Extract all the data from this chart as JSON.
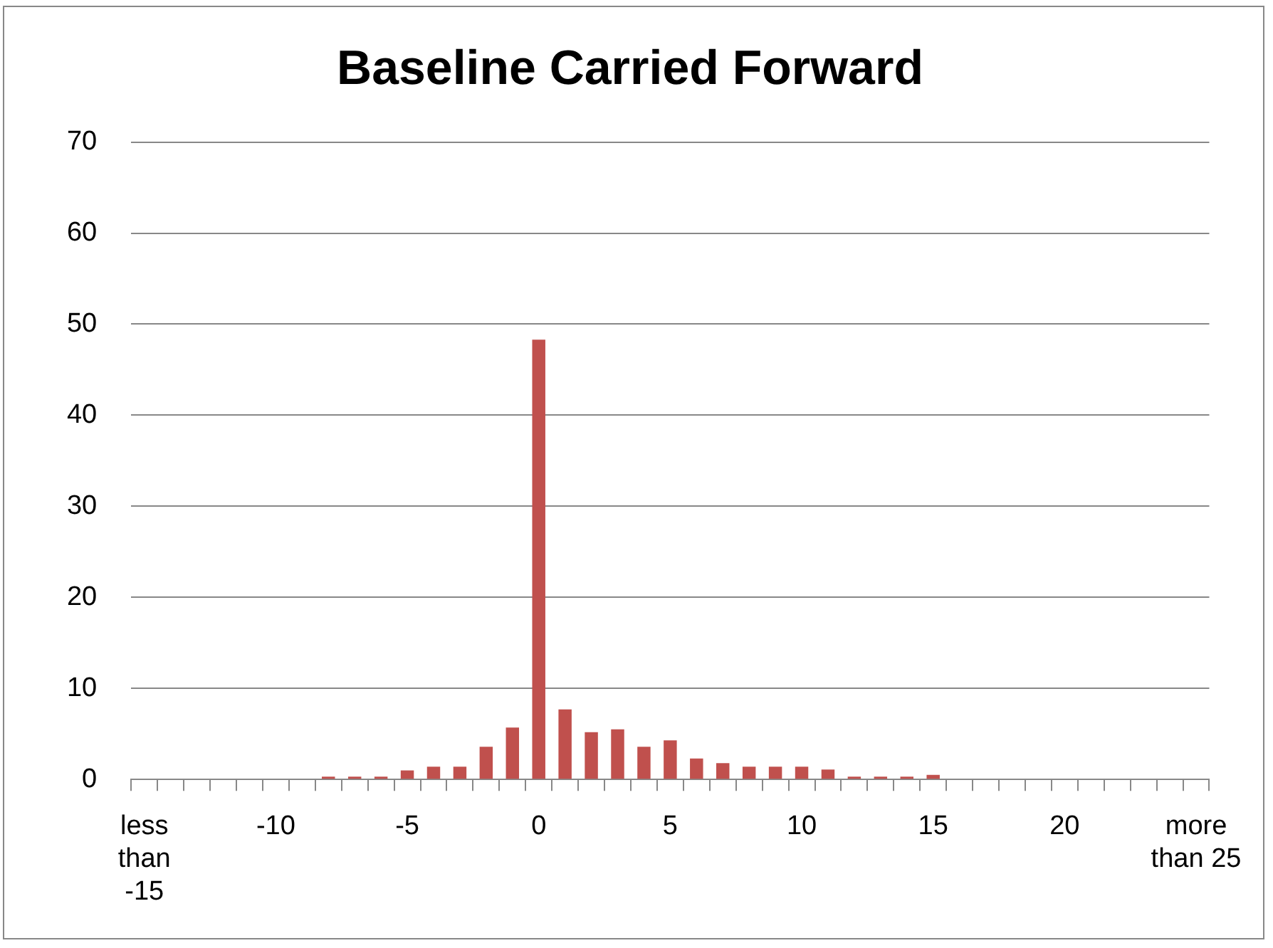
{
  "chart_data": {
    "type": "bar",
    "title": "Baseline Carried Forward",
    "categories": [
      "less than -15",
      null,
      null,
      null,
      null,
      "-10",
      null,
      null,
      null,
      null,
      "-5",
      null,
      null,
      null,
      null,
      "0",
      null,
      null,
      null,
      null,
      "5",
      null,
      null,
      null,
      null,
      "10",
      null,
      null,
      null,
      null,
      "15",
      null,
      null,
      null,
      null,
      "20",
      null,
      null,
      null,
      null,
      "more than 25"
    ],
    "values": [
      0,
      0,
      0,
      0,
      0,
      0,
      0,
      0.3,
      0.3,
      0.3,
      1,
      1.4,
      1.4,
      3.6,
      5.7,
      48.3,
      7.7,
      5.2,
      5.5,
      3.6,
      4.3,
      2.3,
      1.8,
      1.4,
      1.4,
      1.4,
      1.1,
      0.3,
      0.3,
      0.3,
      0.5,
      0,
      0,
      0,
      0,
      0,
      0,
      0,
      0,
      0,
      0
    ],
    "color": "#c0504d",
    "ylim": [
      0,
      70
    ],
    "yticks": [
      0,
      10,
      20,
      30,
      40,
      50,
      60,
      70
    ],
    "grid": "y",
    "legend": false
  }
}
